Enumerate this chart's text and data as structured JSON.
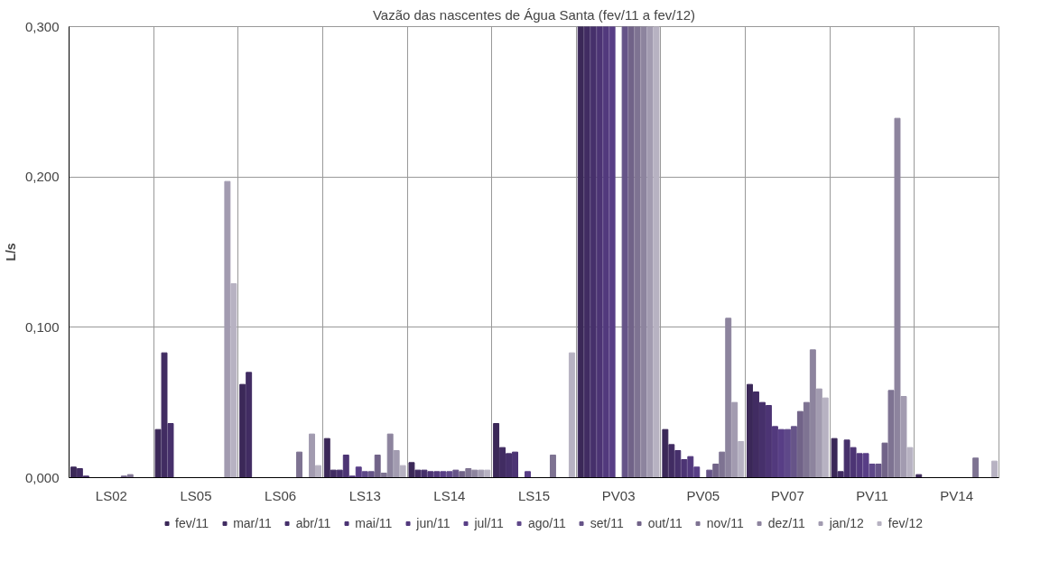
{
  "chart_data": {
    "type": "bar",
    "title": "Vazão das nascentes de Água Santa (fev/11 a fev/12)",
    "ylabel": "L/s",
    "categories": [
      "LS02",
      "LS05",
      "LS06",
      "LS13",
      "LS14",
      "LS15",
      "PV03",
      "PV05",
      "PV07",
      "PV11",
      "PV14"
    ],
    "ylim": [
      0,
      0.3
    ],
    "yticks": [
      {
        "value": 0,
        "label": "0,000"
      },
      {
        "value": 0.1,
        "label": "0,100"
      },
      {
        "value": 0.2,
        "label": "0,200"
      },
      {
        "value": 0.3,
        "label": "0,300"
      }
    ],
    "grid": true,
    "legend": "bottom",
    "series": [
      {
        "name": "fev/11",
        "color": "#3b2858",
        "values": [
          0.007,
          0.032,
          0.062,
          0.026,
          0.01,
          0.036,
          0.3,
          0.032,
          0.062,
          0.026,
          0.002
        ]
      },
      {
        "name": "mar/11",
        "color": "#412c62",
        "values": [
          0.006,
          0.083,
          0.07,
          0.005,
          0.005,
          0.02,
          0.3,
          0.022,
          0.057,
          0.004,
          null
        ]
      },
      {
        "name": "abr/11",
        "color": "#46306b",
        "values": [
          0.001,
          0.036,
          null,
          0.005,
          0.005,
          0.016,
          0.3,
          0.018,
          0.05,
          0.025,
          null
        ]
      },
      {
        "name": "mai/11",
        "color": "#4c3474",
        "values": [
          null,
          null,
          null,
          0.015,
          0.004,
          0.017,
          0.3,
          0.012,
          0.048,
          0.02,
          null
        ]
      },
      {
        "name": "jun/11",
        "color": "#52397d",
        "values": [
          null,
          null,
          null,
          0.001,
          0.004,
          null,
          0.3,
          0.014,
          0.034,
          0.016,
          null
        ]
      },
      {
        "name": "jul/11",
        "color": "#583e86",
        "values": [
          null,
          null,
          null,
          0.007,
          0.004,
          0.004,
          0.3,
          0.007,
          0.032,
          0.016,
          null
        ]
      },
      {
        "name": "ago/11",
        "color": "#5e4889",
        "values": [
          null,
          null,
          null,
          0.004,
          0.004,
          null,
          0,
          null,
          0.032,
          0.009,
          null
        ]
      },
      {
        "name": "set/11",
        "color": "#665488",
        "values": [
          null,
          null,
          null,
          0.004,
          0.005,
          null,
          0.3,
          0.005,
          0.034,
          0.009,
          null
        ]
      },
      {
        "name": "out/11",
        "color": "#716388",
        "values": [
          0.001,
          null,
          null,
          0.015,
          0.004,
          null,
          0.3,
          0.009,
          0.044,
          0.023,
          null
        ]
      },
      {
        "name": "nov/11",
        "color": "#7e7392",
        "values": [
          0.002,
          null,
          0.017,
          0.003,
          0.006,
          0.015,
          0.3,
          0.017,
          0.05,
          0.058,
          0.013
        ]
      },
      {
        "name": "dez/11",
        "color": "#8d849e",
        "values": [
          null,
          null,
          null,
          0.029,
          0.005,
          null,
          0.3,
          0.106,
          0.085,
          0.239,
          null
        ]
      },
      {
        "name": "jan/12",
        "color": "#a29bb0",
        "values": [
          null,
          0.197,
          0.029,
          0.018,
          0.005,
          null,
          0.3,
          0.05,
          0.059,
          0.054,
          null
        ]
      },
      {
        "name": "fev/12",
        "color": "#b7b2c2",
        "values": [
          null,
          0.129,
          0.008,
          0.008,
          0.005,
          0.083,
          0.3,
          0.024,
          0.053,
          0.02,
          0.011
        ]
      }
    ]
  }
}
